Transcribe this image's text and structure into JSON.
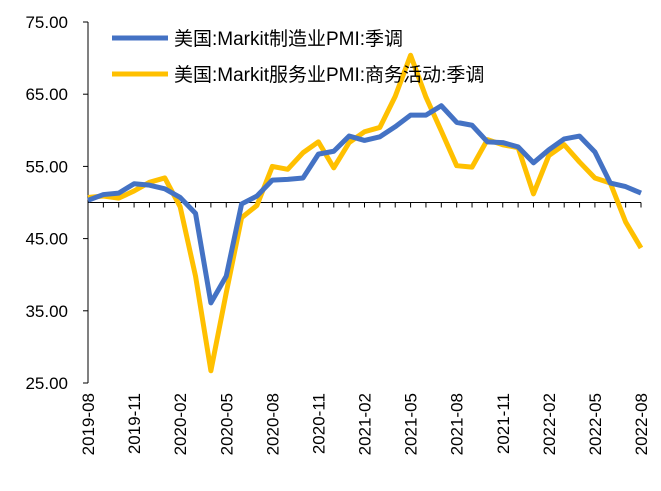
{
  "chart_data": {
    "type": "line",
    "categories": [
      "2019-08",
      null,
      null,
      "2019-11",
      null,
      null,
      "2020-02",
      null,
      null,
      "2020-05",
      null,
      null,
      "2020-08",
      null,
      null,
      "2020-11",
      null,
      null,
      "2021-02",
      null,
      null,
      "2021-05",
      null,
      null,
      "2021-08",
      null,
      null,
      "2021-11",
      null,
      null,
      "2022-02",
      null,
      null,
      "2022-05",
      null,
      null,
      "2022-08"
    ],
    "series": [
      {
        "name": "美国:Markit制造业PMI:季调",
        "color": "#4472c4",
        "values": [
          50.3,
          51.1,
          51.3,
          52.6,
          52.4,
          51.9,
          50.7,
          48.5,
          36.1,
          39.8,
          49.8,
          50.9,
          53.1,
          53.2,
          53.4,
          56.7,
          57.1,
          59.2,
          58.6,
          59.1,
          60.5,
          62.1,
          62.1,
          63.4,
          61.1,
          60.7,
          58.4,
          58.3,
          57.7,
          55.5,
          57.3,
          58.8,
          59.2,
          57.0,
          52.7,
          52.2,
          51.3
        ]
      },
      {
        "name": "美国:Markit服务业PMI:商务活动:季调",
        "color": "#ffc000",
        "values": [
          50.7,
          50.9,
          50.6,
          51.6,
          52.8,
          53.4,
          49.4,
          39.8,
          26.7,
          37.5,
          47.9,
          49.6,
          55.0,
          54.6,
          56.9,
          58.4,
          54.8,
          58.3,
          59.8,
          60.4,
          64.7,
          70.4,
          64.6,
          59.9,
          55.1,
          54.9,
          58.7,
          58.0,
          57.6,
          51.2,
          56.5,
          58.0,
          55.6,
          53.4,
          52.7,
          47.3,
          43.7
        ]
      }
    ],
    "ylim": [
      25,
      75
    ],
    "yticks": [
      {
        "value": 25,
        "label": "25.00"
      },
      {
        "value": 35,
        "label": "35.00"
      },
      {
        "value": 45,
        "label": "45.00"
      },
      {
        "value": 55,
        "label": "55.00"
      },
      {
        "value": 65,
        "label": "65.00"
      },
      {
        "value": 75,
        "label": "75.00"
      }
    ],
    "x_axis_crossing": 50,
    "legend": "upper left"
  }
}
